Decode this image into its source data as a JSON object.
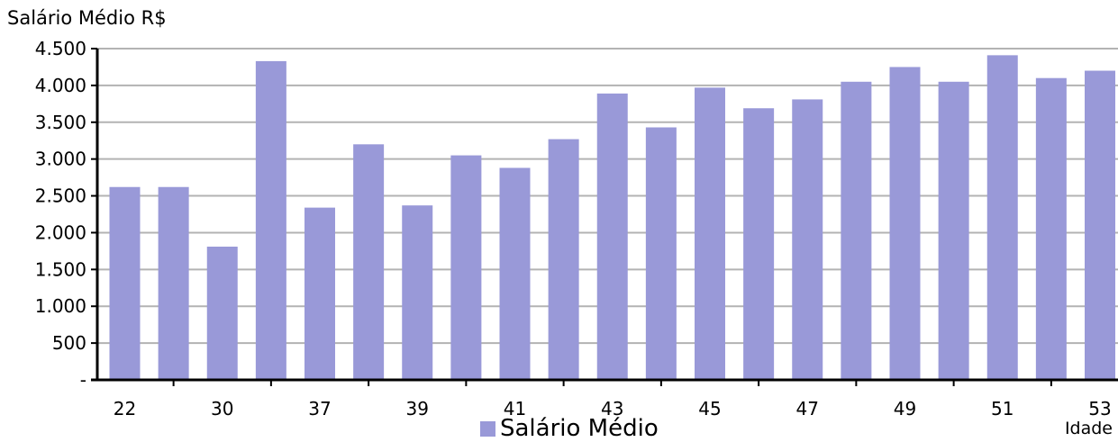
{
  "chart_data": {
    "type": "bar",
    "ylabel": "Salário Médio R$",
    "xlabel": "Idade",
    "ylim": [
      0,
      4500
    ],
    "y_ticks": [
      "-",
      "500",
      "1.000",
      "1.500",
      "2.000",
      "2.500",
      "3.000",
      "3.500",
      "4.000",
      "4.500"
    ],
    "y_tick_values": [
      0,
      500,
      1000,
      1500,
      2000,
      2500,
      3000,
      3500,
      4000,
      4500
    ],
    "x_tick_labels": [
      "22",
      "30",
      "37",
      "39",
      "41",
      "43",
      "45",
      "47",
      "49",
      "51",
      "53"
    ],
    "grid": true,
    "legend_position": "bottom-center",
    "bar_color": "#9999d8",
    "series": [
      {
        "name": "Salário Médio",
        "values": [
          2620,
          2620,
          1810,
          4330,
          2340,
          3200,
          2370,
          3050,
          2880,
          3270,
          3890,
          3430,
          3970,
          3690,
          3810,
          4050,
          4250,
          4050,
          4410,
          4100,
          4200
        ]
      }
    ]
  }
}
